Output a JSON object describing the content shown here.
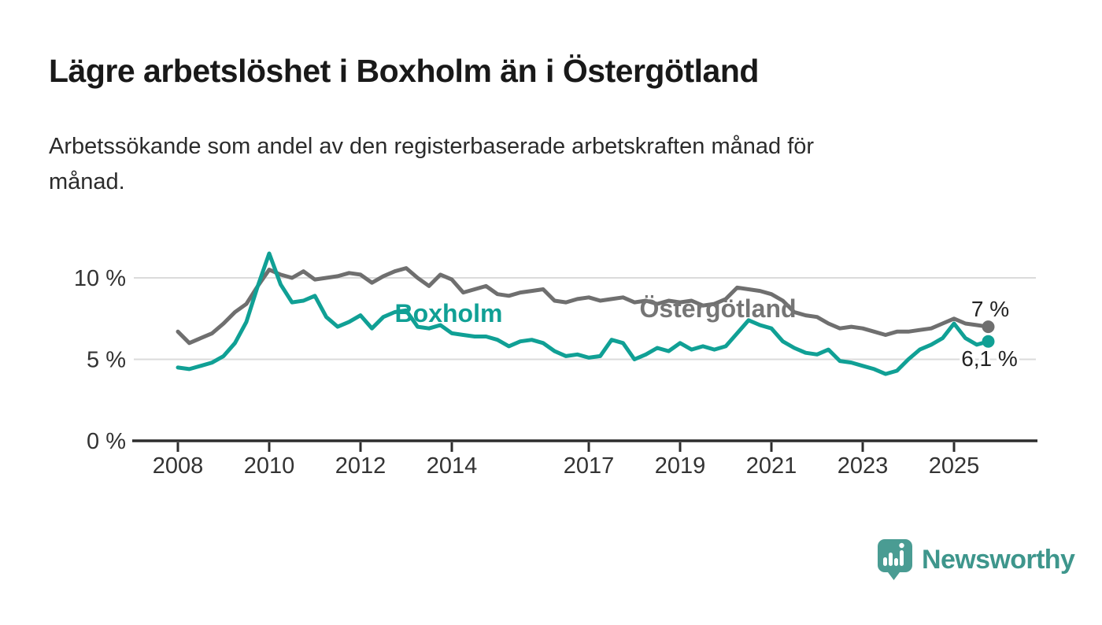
{
  "header": {
    "title": "Lägre arbetslöshet i Boxholm än i Östergötland",
    "subtitle_lines": [
      "Arbetssökande som andel av den registerbaserade arbetskraften månad för",
      "månad."
    ]
  },
  "footer": {
    "brand": "Newsworthy",
    "brand_color": "#3E968C",
    "logo_icon": "newsworthy-speech-bubble-bar-chart-icon",
    "logo_color": "#4A9C93"
  },
  "colors": {
    "boxholm_teal": "#10A095",
    "ostergotland_gray": "#6F6F6F",
    "label_gray": "#757575",
    "axis_dark": "#2d2d2d",
    "tick_text": "#333333",
    "end_label_text": "#222222",
    "gridline": "#dbdbdb",
    "background": "#ffffff"
  },
  "chart_data": {
    "type": "line",
    "title": "Lägre arbetslöshet i Boxholm än i Östergötland",
    "xlabel": "",
    "ylabel": "",
    "unit": "%",
    "sampling": "quarterly",
    "grid": "horizontal",
    "legend": "inline-labels",
    "ylim": [
      0,
      12.8
    ],
    "xlim": [
      2007,
      2026.8
    ],
    "y_ticks": [
      {
        "value": 0,
        "label": "0 %"
      },
      {
        "value": 5,
        "label": "5 %"
      },
      {
        "value": 10,
        "label": "10 %"
      }
    ],
    "x_ticks": [
      {
        "value": 2008,
        "label": "2008"
      },
      {
        "value": 2010,
        "label": "2010"
      },
      {
        "value": 2012,
        "label": "2012"
      },
      {
        "value": 2014,
        "label": "2014"
      },
      {
        "value": 2017,
        "label": "2017"
      },
      {
        "value": 2019,
        "label": "2019"
      },
      {
        "value": 2021,
        "label": "2021"
      },
      {
        "value": 2023,
        "label": "2023"
      },
      {
        "value": 2025,
        "label": "2025"
      }
    ],
    "x": [
      2008,
      2008.25,
      2008.5,
      2008.75,
      2009,
      2009.25,
      2009.5,
      2009.75,
      2010,
      2010.25,
      2010.5,
      2010.75,
      2011,
      2011.25,
      2011.5,
      2011.75,
      2012,
      2012.25,
      2012.5,
      2012.75,
      2013,
      2013.25,
      2013.5,
      2013.75,
      2014,
      2014.25,
      2014.5,
      2014.75,
      2015,
      2015.25,
      2015.5,
      2015.75,
      2016,
      2016.25,
      2016.5,
      2016.75,
      2017,
      2017.25,
      2017.5,
      2017.75,
      2018,
      2018.25,
      2018.5,
      2018.75,
      2019,
      2019.25,
      2019.5,
      2019.75,
      2020,
      2020.25,
      2020.5,
      2020.75,
      2021,
      2021.25,
      2021.5,
      2021.75,
      2022,
      2022.25,
      2022.5,
      2022.75,
      2023,
      2023.25,
      2023.5,
      2023.75,
      2024,
      2024.25,
      2024.5,
      2024.75,
      2025,
      2025.25,
      2025.5,
      2025.75
    ],
    "series": [
      {
        "name": "Östergötland",
        "color": "#6F6F6F",
        "label_color": "#757575",
        "end_label": "7 %",
        "end_value": 7.0,
        "values": [
          6.7,
          6.0,
          6.3,
          6.6,
          7.2,
          7.9,
          8.4,
          9.5,
          10.5,
          10.2,
          10.0,
          10.4,
          9.9,
          10.0,
          10.1,
          10.3,
          10.2,
          9.7,
          10.1,
          10.4,
          10.6,
          10.0,
          9.5,
          10.2,
          9.9,
          9.1,
          9.3,
          9.5,
          9.0,
          8.9,
          9.1,
          9.2,
          9.3,
          8.6,
          8.5,
          8.7,
          8.8,
          8.6,
          8.7,
          8.8,
          8.5,
          8.6,
          8.4,
          8.6,
          8.5,
          8.6,
          8.3,
          8.4,
          8.7,
          9.4,
          9.3,
          9.2,
          9.0,
          8.6,
          7.9,
          7.7,
          7.6,
          7.2,
          6.9,
          7.0,
          6.9,
          6.7,
          6.5,
          6.7,
          6.7,
          6.8,
          6.9,
          7.2,
          7.5,
          7.2,
          7.1,
          7.0
        ]
      },
      {
        "name": "Boxholm",
        "color": "#10A095",
        "label_color": "#10A095",
        "end_label": "6,1 %",
        "end_value": 6.1,
        "values": [
          4.5,
          4.4,
          4.6,
          4.8,
          5.2,
          6.0,
          7.3,
          9.5,
          11.5,
          9.6,
          8.5,
          8.6,
          8.9,
          7.6,
          7.0,
          7.3,
          7.7,
          6.9,
          7.6,
          7.9,
          8.0,
          7.0,
          6.9,
          7.1,
          6.6,
          6.5,
          6.4,
          6.4,
          6.2,
          5.8,
          6.1,
          6.2,
          6.0,
          5.5,
          5.2,
          5.3,
          5.1,
          5.2,
          6.2,
          6.0,
          5.0,
          5.3,
          5.7,
          5.5,
          6.0,
          5.6,
          5.8,
          5.6,
          5.8,
          6.6,
          7.4,
          7.1,
          6.9,
          6.1,
          5.7,
          5.4,
          5.3,
          5.6,
          4.9,
          4.8,
          4.6,
          4.4,
          4.1,
          4.3,
          5.0,
          5.6,
          5.9,
          6.3,
          7.2,
          6.3,
          5.9,
          6.1
        ]
      }
    ]
  }
}
